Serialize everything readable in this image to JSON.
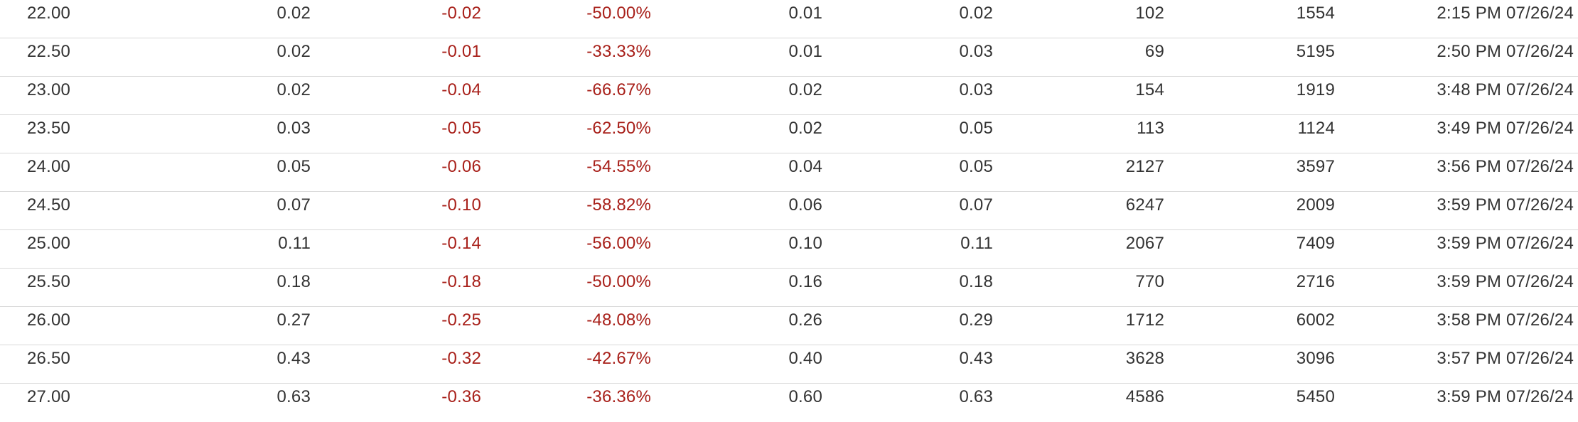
{
  "colors": {
    "text": "#333333",
    "negative": "#a8201a",
    "divider": "#d9d9d9",
    "background": "#ffffff"
  },
  "rows": [
    {
      "strike": "22.00",
      "last": "0.02",
      "change": "-0.02",
      "pct_change": "-50.00%",
      "bid": "0.01",
      "ask": "0.02",
      "volume": "102",
      "open_interest": "1554",
      "time": "2:15 PM 07/26/24"
    },
    {
      "strike": "22.50",
      "last": "0.02",
      "change": "-0.01",
      "pct_change": "-33.33%",
      "bid": "0.01",
      "ask": "0.03",
      "volume": "69",
      "open_interest": "5195",
      "time": "2:50 PM 07/26/24"
    },
    {
      "strike": "23.00",
      "last": "0.02",
      "change": "-0.04",
      "pct_change": "-66.67%",
      "bid": "0.02",
      "ask": "0.03",
      "volume": "154",
      "open_interest": "1919",
      "time": "3:48 PM 07/26/24"
    },
    {
      "strike": "23.50",
      "last": "0.03",
      "change": "-0.05",
      "pct_change": "-62.50%",
      "bid": "0.02",
      "ask": "0.05",
      "volume": "113",
      "open_interest": "1124",
      "time": "3:49 PM 07/26/24"
    },
    {
      "strike": "24.00",
      "last": "0.05",
      "change": "-0.06",
      "pct_change": "-54.55%",
      "bid": "0.04",
      "ask": "0.05",
      "volume": "2127",
      "open_interest": "3597",
      "time": "3:56 PM 07/26/24"
    },
    {
      "strike": "24.50",
      "last": "0.07",
      "change": "-0.10",
      "pct_change": "-58.82%",
      "bid": "0.06",
      "ask": "0.07",
      "volume": "6247",
      "open_interest": "2009",
      "time": "3:59 PM 07/26/24"
    },
    {
      "strike": "25.00",
      "last": "0.11",
      "change": "-0.14",
      "pct_change": "-56.00%",
      "bid": "0.10",
      "ask": "0.11",
      "volume": "2067",
      "open_interest": "7409",
      "time": "3:59 PM 07/26/24"
    },
    {
      "strike": "25.50",
      "last": "0.18",
      "change": "-0.18",
      "pct_change": "-50.00%",
      "bid": "0.16",
      "ask": "0.18",
      "volume": "770",
      "open_interest": "2716",
      "time": "3:59 PM 07/26/24"
    },
    {
      "strike": "26.00",
      "last": "0.27",
      "change": "-0.25",
      "pct_change": "-48.08%",
      "bid": "0.26",
      "ask": "0.29",
      "volume": "1712",
      "open_interest": "6002",
      "time": "3:58 PM 07/26/24"
    },
    {
      "strike": "26.50",
      "last": "0.43",
      "change": "-0.32",
      "pct_change": "-42.67%",
      "bid": "0.40",
      "ask": "0.43",
      "volume": "3628",
      "open_interest": "3096",
      "time": "3:57 PM 07/26/24"
    },
    {
      "strike": "27.00",
      "last": "0.63",
      "change": "-0.36",
      "pct_change": "-36.36%",
      "bid": "0.60",
      "ask": "0.63",
      "volume": "4586",
      "open_interest": "5450",
      "time": "3:59 PM 07/26/24"
    }
  ]
}
